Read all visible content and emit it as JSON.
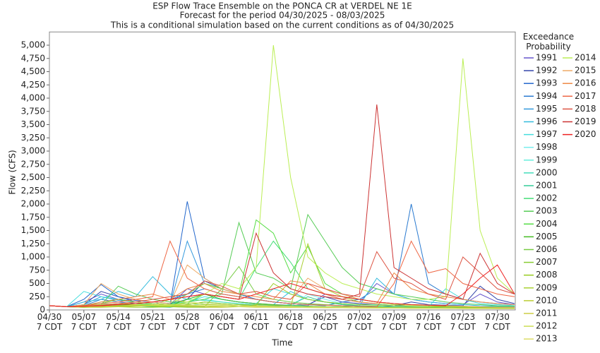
{
  "chart_data": {
    "type": "line",
    "title": "ESP Flow Trace Ensemble on the PONCA CR at VERDEL NE 1E",
    "subtitle": "Forecast for the period 04/30/2025 - 08/03/2025",
    "subtitle_2": "This is a conditional simulation based on the current conditions as of 04/30/2025",
    "x_label": "Time",
    "y_label": "Flow (CFS)",
    "legend_title": "Exceedance\nProbability",
    "categories": [
      "04/30\n7 CDT",
      null,
      "05/07\n7 CDT",
      null,
      "05/14\n7 CDT",
      null,
      "05/21\n7 CDT",
      null,
      "05/28\n7 CDT",
      null,
      "06/04\n7 CDT",
      null,
      "06/11\n7 CDT",
      null,
      "06/18\n7 CDT",
      null,
      "06/25\n7 CDT",
      null,
      "07/02\n7 CDT",
      null,
      "07/09\n7 CDT",
      null,
      "07/16\n7 CDT",
      null,
      "07/23\n7 CDT",
      null,
      "07/30\n7 CDT",
      null
    ],
    "ylim": [
      0,
      5250
    ],
    "yticks": [
      0,
      250,
      500,
      750,
      {
        "value": 1000,
        "label": "1,000"
      },
      {
        "value": 1250,
        "label": "1,250"
      },
      {
        "value": 1500,
        "label": "1,500"
      },
      {
        "value": 1750,
        "label": "1,750"
      },
      {
        "value": 2000,
        "label": "2,000"
      },
      {
        "value": 2250,
        "label": "2,250"
      },
      {
        "value": 2500,
        "label": "2,500"
      },
      {
        "value": 2750,
        "label": "2,750"
      },
      {
        "value": 3000,
        "label": "3,000"
      },
      {
        "value": 3250,
        "label": "3,250"
      },
      {
        "value": 3500,
        "label": "3,500"
      },
      {
        "value": 3750,
        "label": "3,750"
      },
      {
        "value": 4000,
        "label": "4,000"
      },
      {
        "value": 4250,
        "label": "4,250"
      },
      {
        "value": 4500,
        "label": "4,500"
      },
      {
        "value": 4750,
        "label": "4,750"
      },
      {
        "value": 5000,
        "label": "5,000"
      }
    ],
    "series": [
      {
        "name": "1991",
        "color": "#6655cc",
        "values": [
          80,
          60,
          150,
          300,
          200,
          150,
          120,
          100,
          400,
          300,
          200,
          150,
          120,
          100,
          90,
          80,
          300,
          200,
          150,
          500,
          300,
          200,
          150,
          120,
          100,
          300,
          150,
          100
        ]
      },
      {
        "name": "1992",
        "color": "#3344aa",
        "values": [
          80,
          60,
          100,
          350,
          250,
          180,
          150,
          120,
          200,
          550,
          400,
          300,
          200,
          150,
          120,
          100,
          250,
          150,
          120,
          100,
          80,
          150,
          100,
          90,
          80,
          450,
          200,
          120
        ]
      },
      {
        "name": "1993",
        "color": "#2266cc",
        "values": [
          80,
          60,
          200,
          480,
          250,
          150,
          120,
          100,
          2050,
          600,
          400,
          300,
          200,
          150,
          120,
          100,
          90,
          80,
          70,
          60,
          80,
          100,
          90,
          80,
          70,
          60,
          60,
          50
        ]
      },
      {
        "name": "1994",
        "color": "#2a7ad0",
        "values": [
          80,
          60,
          80,
          200,
          150,
          120,
          100,
          200,
          300,
          400,
          300,
          250,
          200,
          150,
          120,
          100,
          80,
          150,
          200,
          400,
          300,
          2000,
          500,
          300,
          200,
          150,
          120,
          100
        ]
      },
      {
        "name": "1995",
        "color": "#3399dd",
        "values": [
          80,
          60,
          100,
          250,
          180,
          150,
          120,
          100,
          1300,
          500,
          400,
          300,
          200,
          150,
          120,
          100,
          90,
          80,
          70,
          60,
          50,
          50,
          40,
          40,
          40,
          40,
          40,
          40
        ]
      },
      {
        "name": "1996",
        "color": "#33bbdd",
        "values": [
          80,
          60,
          150,
          200,
          350,
          250,
          630,
          300,
          200,
          300,
          200,
          150,
          120,
          100,
          350,
          200,
          150,
          100,
          80,
          600,
          300,
          200,
          150,
          120,
          100,
          80,
          70,
          60
        ]
      },
      {
        "name": "1997",
        "color": "#44dddd",
        "values": [
          80,
          60,
          350,
          250,
          200,
          150,
          120,
          100,
          150,
          250,
          200,
          150,
          120,
          400,
          300,
          200,
          150,
          120,
          100,
          100,
          80,
          60,
          60,
          400,
          200,
          120,
          100,
          80
        ]
      },
      {
        "name": "1998",
        "color": "#77eeee",
        "values": [
          80,
          60,
          50,
          60,
          80,
          100,
          90,
          80,
          70,
          120,
          100,
          80,
          70,
          60,
          60,
          300,
          200,
          120,
          80,
          60,
          50,
          50,
          40,
          40,
          30,
          30,
          30,
          30
        ]
      },
      {
        "name": "1999",
        "color": "#66eedd",
        "values": [
          80,
          60,
          90,
          120,
          100,
          80,
          70,
          60,
          150,
          200,
          150,
          120,
          100,
          80,
          70,
          60,
          50,
          50,
          40,
          40,
          40,
          40,
          35,
          35,
          30,
          30,
          30,
          30
        ]
      },
      {
        "name": "2000",
        "color": "#44ddbb",
        "values": [
          80,
          60,
          60,
          80,
          90,
          100,
          120,
          100,
          200,
          180,
          150,
          120,
          100,
          90,
          80,
          100,
          90,
          80,
          70,
          60,
          60,
          50,
          50,
          40,
          40,
          40,
          35,
          35
        ]
      },
      {
        "name": "2001",
        "color": "#33cc99",
        "values": [
          80,
          60,
          50,
          70,
          100,
          80,
          60,
          50,
          100,
          150,
          120,
          100,
          80,
          70,
          100,
          250,
          150,
          100,
          80,
          70,
          60,
          50,
          50,
          40,
          40,
          35,
          35,
          30
        ]
      },
      {
        "name": "2002",
        "color": "#44dd77",
        "values": [
          80,
          60,
          80,
          150,
          200,
          150,
          120,
          100,
          120,
          300,
          250,
          200,
          800,
          1300,
          900,
          400,
          300,
          250,
          200,
          150,
          120,
          100,
          90,
          80,
          70,
          60,
          60,
          50
        ]
      },
      {
        "name": "2003",
        "color": "#55cc55",
        "values": [
          80,
          60,
          70,
          100,
          450,
          300,
          200,
          150,
          150,
          200,
          300,
          1650,
          700,
          600,
          400,
          1800,
          1300,
          800,
          500,
          400,
          300,
          250,
          200,
          150,
          120,
          100,
          80,
          70
        ]
      },
      {
        "name": "2004",
        "color": "#55dd44",
        "values": [
          80,
          60,
          90,
          120,
          200,
          150,
          120,
          100,
          300,
          500,
          400,
          300,
          1700,
          1450,
          700,
          1200,
          500,
          300,
          200,
          150,
          120,
          100,
          80,
          70,
          60,
          50,
          50,
          40
        ]
      },
      {
        "name": "2005",
        "color": "#44bb22",
        "values": [
          80,
          60,
          70,
          80,
          90,
          100,
          90,
          80,
          200,
          300,
          200,
          150,
          120,
          100,
          80,
          70,
          60,
          60,
          50,
          50,
          45,
          45,
          40,
          40,
          35,
          35,
          30,
          30
        ]
      },
      {
        "name": "2006",
        "color": "#77cc44",
        "values": [
          80,
          60,
          60,
          70,
          100,
          120,
          100,
          80,
          70,
          60,
          400,
          820,
          300,
          200,
          150,
          120,
          100,
          80,
          70,
          60,
          50,
          50,
          45,
          45,
          40,
          40,
          35,
          35
        ]
      },
      {
        "name": "2007",
        "color": "#88cc33",
        "values": [
          80,
          60,
          50,
          60,
          70,
          80,
          70,
          60,
          50,
          50,
          60,
          80,
          100,
          90,
          80,
          70,
          60,
          60,
          50,
          50,
          45,
          45,
          40,
          40,
          35,
          35,
          30,
          30
        ]
      },
      {
        "name": "2008",
        "color": "#99cc22",
        "values": [
          80,
          60,
          70,
          80,
          60,
          50,
          50,
          60,
          100,
          150,
          120,
          100,
          90,
          500,
          300,
          200,
          150,
          120,
          100,
          90,
          80,
          70,
          60,
          60,
          50,
          50,
          45,
          45
        ]
      },
      {
        "name": "2009",
        "color": "#aad033",
        "values": [
          80,
          60,
          60,
          60,
          70,
          80,
          90,
          100,
          120,
          100,
          90,
          80,
          70,
          60,
          60,
          1250,
          400,
          250,
          150,
          120,
          100,
          90,
          80,
          70,
          60,
          60,
          50,
          50
        ]
      },
      {
        "name": "2010",
        "color": "#bbcc33",
        "values": [
          80,
          60,
          50,
          50,
          60,
          70,
          80,
          70,
          60,
          50,
          50,
          60,
          80,
          70,
          60,
          50,
          50,
          45,
          45,
          40,
          40,
          35,
          35,
          30,
          30,
          30,
          25,
          25
        ]
      },
      {
        "name": "2011",
        "color": "#cccc44",
        "values": [
          80,
          60,
          60,
          70,
          80,
          90,
          100,
          90,
          80,
          70,
          60,
          60,
          50,
          50,
          45,
          45,
          40,
          40,
          35,
          35,
          35,
          30,
          30,
          30,
          25,
          25,
          25,
          25
        ]
      },
      {
        "name": "2012",
        "color": "#ccdd55",
        "values": [
          80,
          60,
          70,
          80,
          100,
          150,
          120,
          100,
          90,
          80,
          70,
          60,
          60,
          50,
          50,
          45,
          45,
          40,
          40,
          35,
          35,
          30,
          30,
          30,
          25,
          25,
          25,
          25
        ]
      },
      {
        "name": "2013",
        "color": "#dddd66",
        "values": [
          80,
          60,
          80,
          100,
          120,
          100,
          90,
          200,
          150,
          120,
          100,
          80,
          70,
          60,
          60,
          50,
          50,
          45,
          45,
          40,
          40,
          35,
          35,
          30,
          30,
          30,
          25,
          25
        ]
      },
      {
        "name": "2014",
        "color": "#bbee55",
        "values": [
          80,
          60,
          70,
          100,
          120,
          100,
          90,
          80,
          150,
          300,
          500,
          400,
          800,
          5000,
          2500,
          1000,
          700,
          500,
          400,
          300,
          250,
          200,
          200,
          250,
          4750,
          1500,
          600,
          300
        ]
      },
      {
        "name": "2015",
        "color": "#eeaa66",
        "values": [
          80,
          60,
          100,
          500,
          300,
          200,
          150,
          120,
          850,
          600,
          400,
          300,
          350,
          250,
          200,
          600,
          400,
          300,
          200,
          150,
          120,
          100,
          90,
          80,
          70,
          60,
          50,
          50
        ]
      },
      {
        "name": "2016",
        "color": "#ee8844",
        "values": [
          80,
          60,
          80,
          150,
          200,
          250,
          300,
          200,
          400,
          500,
          350,
          300,
          250,
          200,
          550,
          500,
          300,
          200,
          150,
          120,
          700,
          400,
          300,
          250,
          200,
          150,
          120,
          100
        ]
      },
      {
        "name": "2017",
        "color": "#ee6644",
        "values": [
          80,
          60,
          80,
          120,
          150,
          200,
          250,
          1300,
          600,
          400,
          300,
          250,
          200,
          150,
          120,
          100,
          90,
          80,
          70,
          60,
          500,
          1300,
          700,
          780,
          500,
          400,
          300,
          250
        ]
      },
      {
        "name": "2018",
        "color": "#dd5544",
        "values": [
          80,
          60,
          70,
          90,
          120,
          150,
          200,
          250,
          300,
          550,
          450,
          300,
          350,
          250,
          200,
          500,
          400,
          300,
          250,
          1100,
          600,
          500,
          300,
          200,
          1000,
          700,
          400,
          300
        ]
      },
      {
        "name": "2019",
        "color": "#cc3333",
        "values": [
          80,
          60,
          70,
          80,
          100,
          120,
          150,
          200,
          250,
          300,
          250,
          200,
          1450,
          700,
          400,
          300,
          250,
          200,
          300,
          3880,
          800,
          600,
          400,
          300,
          200,
          1070,
          500,
          300
        ]
      },
      {
        "name": "2020",
        "color": "#ee2222",
        "values": [
          80,
          60,
          70,
          80,
          100,
          120,
          150,
          200,
          250,
          300,
          250,
          200,
          300,
          400,
          500,
          400,
          300,
          250,
          200,
          150,
          120,
          100,
          90,
          80,
          300,
          600,
          850,
          300
        ]
      }
    ]
  }
}
